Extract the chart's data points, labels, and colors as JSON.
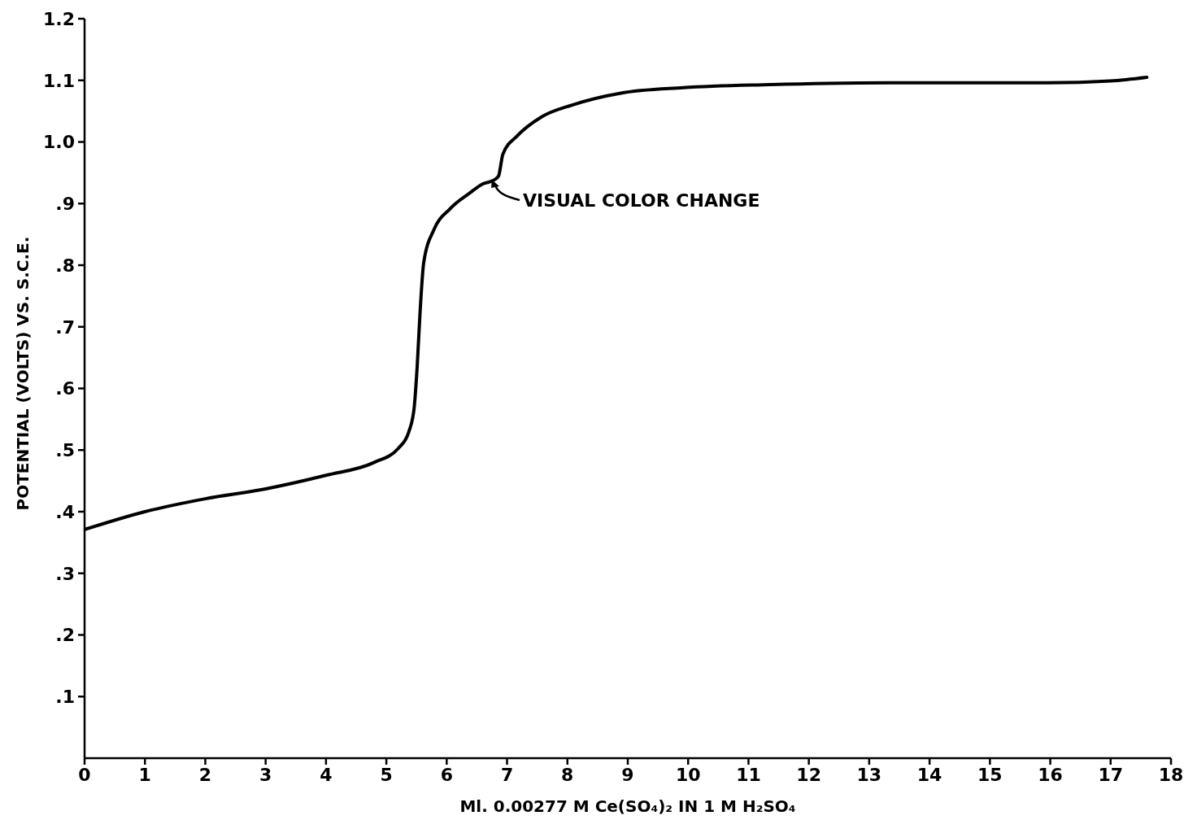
{
  "chart_data": {
    "type": "line",
    "xlabel": "Ml. 0.00277 M Ce(SO₄)₂ IN 1 M H₂SO₄",
    "ylabel": "POTENTIAL (VOLTS) VS. S.C.E.",
    "x": [
      0,
      1,
      2,
      3,
      4,
      4.8,
      5.2,
      5.37,
      5.46,
      5.51,
      5.56,
      5.62,
      5.79,
      6.05,
      6.38,
      6.6,
      6.78,
      6.86,
      6.93,
      7.17,
      7.56,
      8.08,
      8.87,
      9.92,
      11.36,
      13.33,
      15.96,
      17.0,
      17.6
    ],
    "series": [
      {
        "color": "#000000",
        "values": [
          0.371,
          0.4,
          0.421,
          0.437,
          0.459,
          0.48,
          0.503,
          0.529,
          0.568,
          0.634,
          0.726,
          0.805,
          0.858,
          0.891,
          0.917,
          0.932,
          0.938,
          0.945,
          0.98,
          1.01,
          1.04,
          1.06,
          1.079,
          1.088,
          1.093,
          1.096,
          1.096,
          1.099,
          1.105
        ]
      }
    ],
    "xlim": [
      0,
      18
    ],
    "xticks": [
      0,
      1,
      2,
      3,
      4,
      5,
      6,
      7,
      8,
      9,
      10,
      11,
      12,
      13,
      14,
      15,
      16,
      17,
      18
    ],
    "ylim": [
      0,
      1.2
    ],
    "yticks": [
      {
        "value": 0.1,
        "label": ".1"
      },
      {
        "value": 0.2,
        "label": ".2"
      },
      {
        "value": 0.3,
        "label": ".3"
      },
      {
        "value": 0.4,
        "label": ".4"
      },
      {
        "value": 0.5,
        "label": ".5"
      },
      {
        "value": 0.6,
        "label": ".6"
      },
      {
        "value": 0.7,
        "label": ".7"
      },
      {
        "value": 0.8,
        "label": ".8"
      },
      {
        "value": 0.9,
        "label": ".9"
      },
      {
        "value": 1.0,
        "label": "1.0"
      },
      {
        "value": 1.1,
        "label": "1.1"
      },
      {
        "value": 1.2,
        "label": "1.2"
      }
    ],
    "annotations": [
      {
        "text": "VISUAL COLOR CHANGE",
        "x": 6.75,
        "y": 0.94
      }
    ],
    "grid": false,
    "legend": false,
    "marker": "none",
    "line_style": "solid"
  }
}
